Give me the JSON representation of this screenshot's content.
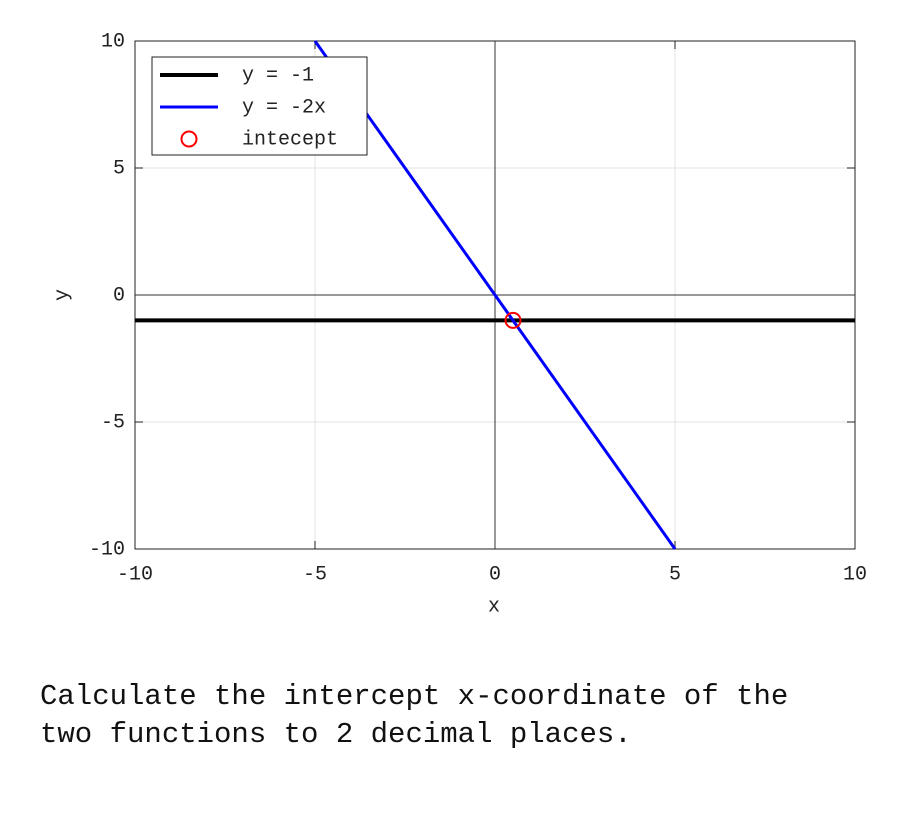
{
  "chart_data": {
    "type": "line",
    "xlabel": "x",
    "ylabel": "y",
    "series": [
      {
        "name": "y = -1",
        "color": "#000000",
        "x": [
          -10,
          10
        ],
        "values": [
          -1,
          -1
        ]
      },
      {
        "name": "y = -2x",
        "color": "#0000ff",
        "x": [
          -5,
          5
        ],
        "values": [
          10,
          -10
        ]
      },
      {
        "name": "intecept",
        "color": "#ff0000",
        "marker": "o",
        "x": [
          0.5
        ],
        "values": [
          -1
        ]
      }
    ],
    "xlim": [
      -10,
      10
    ],
    "ylim": [
      -10,
      10
    ],
    "xticks": [
      -10,
      -5,
      0,
      5,
      10
    ],
    "yticks": [
      -10,
      -5,
      0,
      5,
      10
    ],
    "grid": true,
    "zero_lines": true,
    "legend": "upper left"
  },
  "question": "Calculate the intercept x-coordinate of the two functions to 2 decimal places."
}
